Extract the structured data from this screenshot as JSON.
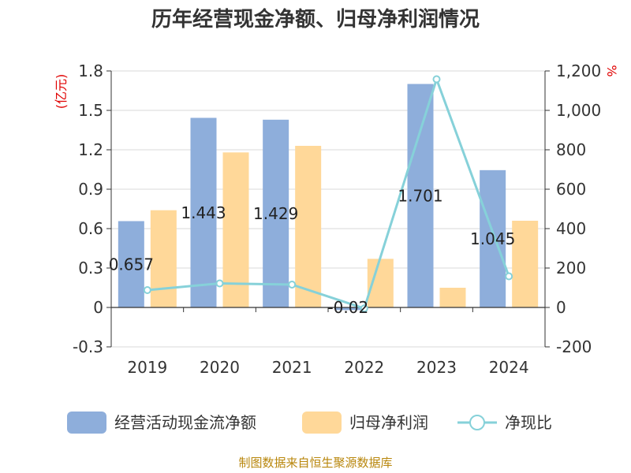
{
  "chart_data": {
    "type": "bar",
    "title": "历年经营现金净额、归母净利润情况",
    "categories": [
      "2019",
      "2020",
      "2021",
      "2022",
      "2023",
      "2024"
    ],
    "left_unit": "(亿元)",
    "right_unit": "%",
    "left_axis": {
      "min": -0.3,
      "max": 1.8,
      "ticks": [
        "-0.3",
        "0",
        "0.3",
        "0.6",
        "0.9",
        "1.2",
        "1.5",
        "1.8"
      ]
    },
    "right_axis": {
      "min": -200,
      "max": 1200,
      "ticks": [
        "-200",
        "0",
        "200",
        "400",
        "600",
        "800",
        "1,000",
        "1,200"
      ]
    },
    "grid": true,
    "legend_position": "bottom",
    "series": [
      {
        "name": "经营活动现金流净额",
        "type": "bar",
        "axis": "left",
        "color": "#8eaedb",
        "values": [
          0.657,
          1.443,
          1.429,
          -0.02,
          1.701,
          1.045
        ],
        "labels": [
          "0.657",
          "1.443",
          "1.429",
          "-0.02",
          "1.701",
          "1.045"
        ]
      },
      {
        "name": "归母净利润",
        "type": "bar",
        "axis": "left",
        "color": "#ffd899",
        "values": [
          0.74,
          1.18,
          1.23,
          0.37,
          0.15,
          0.66
        ]
      },
      {
        "name": "净现比",
        "type": "line",
        "axis": "right",
        "color": "#86d1d9",
        "values": [
          88,
          122,
          116,
          -5,
          1158,
          158
        ]
      }
    ],
    "source": "制图数据来自恒生聚源数据库"
  }
}
